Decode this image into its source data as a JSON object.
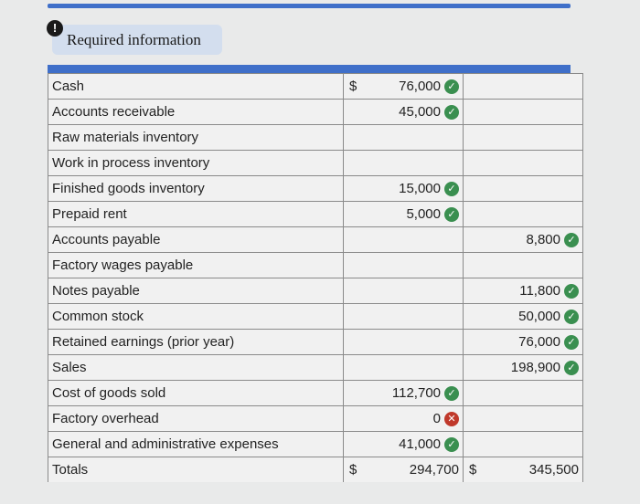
{
  "alert_icon": "!",
  "required_info": "Required information",
  "icons": {
    "correct": "check-circle-icon",
    "incorrect": "x-circle-icon"
  },
  "colors": {
    "correct": "#3a8f50",
    "incorrect": "#c0392b",
    "accent": "#3f6fc9"
  },
  "rows": [
    {
      "account": "Cash",
      "debit_sign": "$",
      "debit": "76,000",
      "debit_status": "correct",
      "credit": "",
      "credit_status": ""
    },
    {
      "account": "Accounts receivable",
      "debit_sign": "",
      "debit": "45,000",
      "debit_status": "correct",
      "credit": "",
      "credit_status": ""
    },
    {
      "account": "Raw materials inventory",
      "debit_sign": "",
      "debit": "",
      "debit_status": "",
      "credit": "",
      "credit_status": ""
    },
    {
      "account": "Work in process inventory",
      "debit_sign": "",
      "debit": "",
      "debit_status": "",
      "credit": "",
      "credit_status": ""
    },
    {
      "account": "Finished goods inventory",
      "debit_sign": "",
      "debit": "15,000",
      "debit_status": "correct",
      "credit": "",
      "credit_status": ""
    },
    {
      "account": "Prepaid rent",
      "debit_sign": "",
      "debit": "5,000",
      "debit_status": "correct",
      "credit": "",
      "credit_status": ""
    },
    {
      "account": "Accounts payable",
      "debit_sign": "",
      "debit": "",
      "debit_status": "",
      "credit": "8,800",
      "credit_status": "correct"
    },
    {
      "account": "Factory wages payable",
      "debit_sign": "",
      "debit": "",
      "debit_status": "",
      "credit": "",
      "credit_status": ""
    },
    {
      "account": "Notes payable",
      "debit_sign": "",
      "debit": "",
      "debit_status": "",
      "credit": "11,800",
      "credit_status": "correct"
    },
    {
      "account": "Common stock",
      "debit_sign": "",
      "debit": "",
      "debit_status": "",
      "credit": "50,000",
      "credit_status": "correct"
    },
    {
      "account": "Retained earnings (prior year)",
      "debit_sign": "",
      "debit": "",
      "debit_status": "",
      "credit": "76,000",
      "credit_status": "correct"
    },
    {
      "account": "Sales",
      "debit_sign": "",
      "debit": "",
      "debit_status": "",
      "credit": "198,900",
      "credit_status": "correct"
    },
    {
      "account": "Cost of goods sold",
      "debit_sign": "",
      "debit": "112,700",
      "debit_status": "correct",
      "credit": "",
      "credit_status": ""
    },
    {
      "account": "Factory overhead",
      "debit_sign": "",
      "debit": "0",
      "debit_status": "incorrect",
      "credit": "",
      "credit_status": ""
    },
    {
      "account": "General and administrative expenses",
      "debit_sign": "",
      "debit": "41,000",
      "debit_status": "correct",
      "credit": "",
      "credit_status": ""
    }
  ],
  "totals": {
    "label": "Totals",
    "debit_sign": "$",
    "debit": "294,700",
    "credit_sign": "$",
    "credit": "345,500"
  }
}
